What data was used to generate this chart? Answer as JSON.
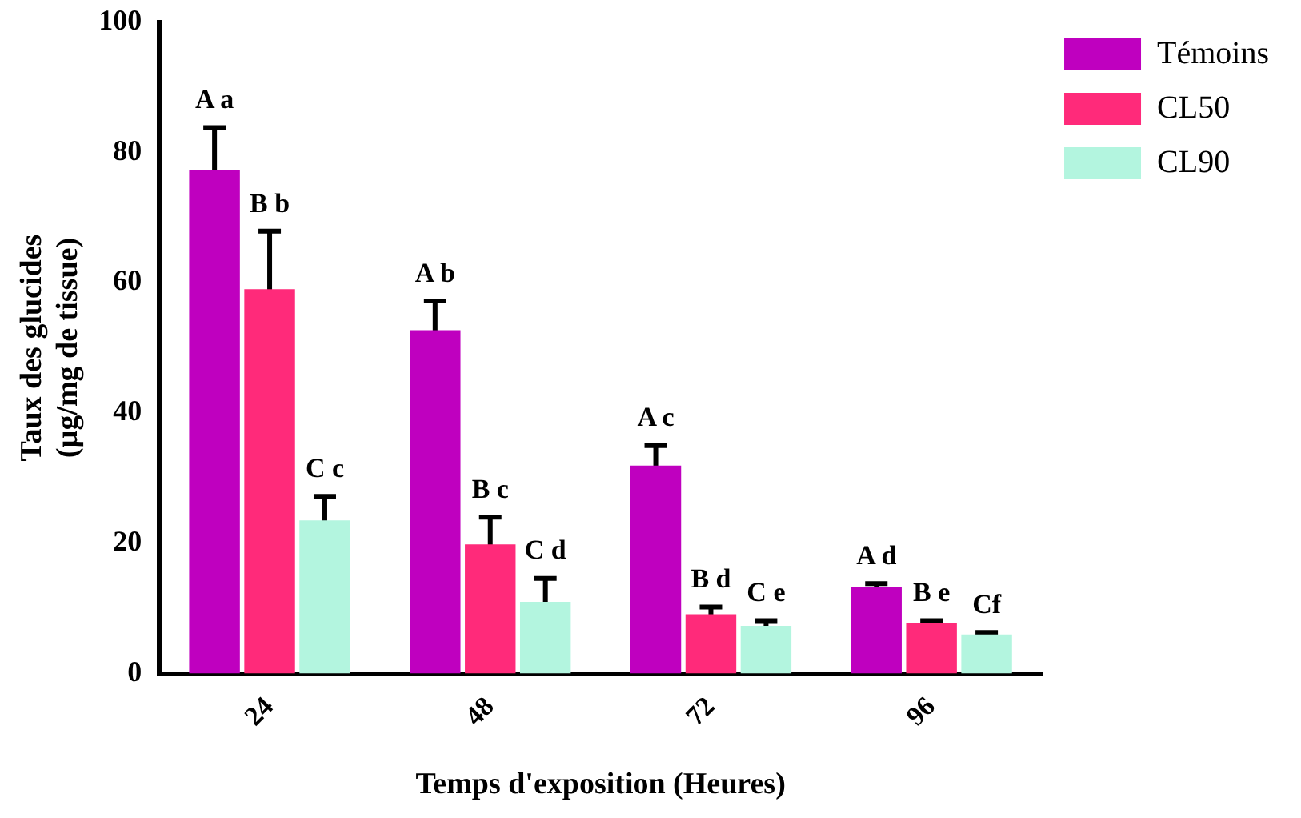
{
  "chart_data": {
    "type": "bar",
    "xlabel": "Temps d'exposition (Heures)",
    "ylabel": "Taux des glucides\n(µg/mg de tissue)",
    "categories": [
      "24",
      "48",
      "72",
      "96"
    ],
    "series": [
      {
        "name": "Témoins",
        "color": "#bf00bf",
        "values": [
          77.3,
          52.7,
          31.9,
          13.3
        ],
        "errors": [
          6.5,
          4.5,
          3.1,
          0.5
        ],
        "value_labels": [
          "A a",
          "A b",
          "A c",
          "A d"
        ]
      },
      {
        "name": "CL50",
        "color": "#ff2a7a",
        "values": [
          59,
          19.8,
          9.1,
          7.8
        ],
        "errors": [
          8.9,
          4.2,
          1.1,
          0.3
        ],
        "value_labels": [
          "B b",
          "B c",
          "B d",
          "B e"
        ]
      },
      {
        "name": "CL90",
        "color": "#b3f5df",
        "values": [
          23.5,
          11,
          7.3,
          6
        ],
        "errors": [
          3.7,
          3.6,
          0.8,
          0.3
        ],
        "value_labels": [
          "C c",
          "C d",
          "C e",
          "Cf"
        ]
      }
    ],
    "ylim": [
      0,
      100
    ],
    "yticks": [
      0,
      20,
      40,
      60,
      80,
      100
    ],
    "grid": false,
    "legend": "top right"
  }
}
